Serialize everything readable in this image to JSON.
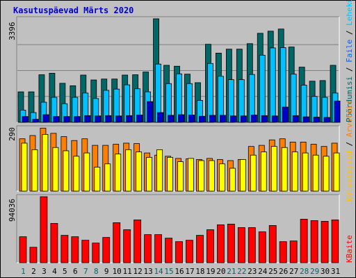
{
  "title": "Kasutuspäevad Märts 2020",
  "colors": {
    "hits": "#006666",
    "files": "#00c0ff",
    "pages": "#0000cc",
    "visits": "#ff8000",
    "sites": "#ffff00",
    "kbytes": "#ff0000",
    "day_normal": "#008000",
    "day_weekend": "#006666"
  },
  "right_labels": {
    "top": [
      {
        "text": "Pöördumisi",
        "color": "#006666"
      },
      {
        "text": " / ",
        "color": "#000000"
      },
      {
        "text": "Faile",
        "color": "#0060ff"
      },
      {
        "text": " / ",
        "color": "#000000"
      },
      {
        "text": "Lehekülgi",
        "color": "#00c0ff"
      }
    ],
    "middle": [
      {
        "text": "Külastajaid",
        "color": "#ffc000"
      },
      {
        "text": " / ",
        "color": "#000000"
      },
      {
        "text": "Arvuteid",
        "color": "#ff8000"
      }
    ],
    "bottom": [
      {
        "text": "KBaite",
        "color": "#ff0000"
      }
    ]
  },
  "chart_data": {
    "type": "bar",
    "title": "Kasutuspäevad Märts 2020",
    "categories": [
      "1",
      "2",
      "3",
      "4",
      "5",
      "6",
      "7",
      "8",
      "9",
      "10",
      "11",
      "12",
      "13",
      "14",
      "15",
      "16",
      "17",
      "18",
      "19",
      "20",
      "21",
      "22",
      "23",
      "24",
      "25",
      "26",
      "27",
      "28",
      "29",
      "30",
      "31"
    ],
    "weekend_days": [
      "1",
      "7",
      "8",
      "14",
      "15",
      "21",
      "22",
      "28",
      "29"
    ],
    "panels": [
      {
        "name": "hits-files-pages",
        "ymax_label": "3396",
        "ylim": [
          0,
          3396
        ],
        "series": [
          {
            "name": "Pöördumisi",
            "values": [
              1000,
              1000,
              1560,
              1610,
              1280,
              1200,
              1550,
              1390,
              1420,
              1420,
              1550,
              1560,
              1650,
              3396,
              1870,
              1840,
              1580,
              1300,
              2560,
              2270,
              2400,
              2400,
              2580,
              2920,
              2990,
              3060,
              2470,
              1810,
              1350,
              1370,
              1870
            ]
          },
          {
            "name": "Faile",
            "values": [
              400,
              320,
              660,
              820,
              610,
              820,
              960,
              780,
              1050,
              1090,
              1230,
              1100,
              1000,
              1910,
              1270,
              1590,
              1270,
              720,
              1930,
              1510,
              1400,
              1400,
              1570,
              2200,
              2440,
              2450,
              1580,
              1220,
              850,
              820,
              960
            ]
          },
          {
            "name": "Lehekülgi",
            "values": [
              190,
              100,
              250,
              190,
              190,
              190,
              220,
              210,
              220,
              210,
              220,
              240,
              680,
              320,
              230,
              250,
              240,
              200,
              230,
              230,
              210,
              210,
              240,
              220,
              210,
              500,
              220,
              180,
              170,
              160,
              700
            ]
          }
        ]
      },
      {
        "name": "visits-sites",
        "ymax_label": "290",
        "ylim": [
          0,
          290
        ],
        "series": [
          {
            "name": "Arvuteid",
            "values": [
              220,
              190,
              260,
              200,
              185,
              160,
              175,
              110,
              125,
              170,
              190,
              180,
              155,
              190,
              155,
              135,
              150,
              140,
              140,
              125,
              105,
              145,
              165,
              180,
              205,
              200,
              180,
              175,
              165,
              160,
              175
            ]
          },
          {
            "name": "Külastajaid",
            "values": [
              240,
              255,
              289,
              265,
              250,
              232,
              240,
              210,
              210,
              215,
              220,
              218,
              175,
              165,
              160,
              150,
              148,
              145,
              150,
              145,
              140,
              145,
              205,
              210,
              235,
              240,
              225,
              225,
              215,
              205,
              220
            ]
          }
        ]
      },
      {
        "name": "kbytes",
        "ymax_label": "94036",
        "ylim": [
          0,
          94036
        ],
        "series": [
          {
            "name": "KBaite",
            "values": [
              37000,
              22000,
              94036,
              56000,
              39000,
              37000,
              32000,
              28000,
              36000,
              57000,
              47000,
              61000,
              40000,
              40000,
              35000,
              30000,
              32000,
              39000,
              47000,
              54000,
              55000,
              50000,
              50000,
              44000,
              53000,
              30000,
              31000,
              62000,
              60000,
              59000,
              61000
            ]
          }
        ]
      }
    ]
  }
}
